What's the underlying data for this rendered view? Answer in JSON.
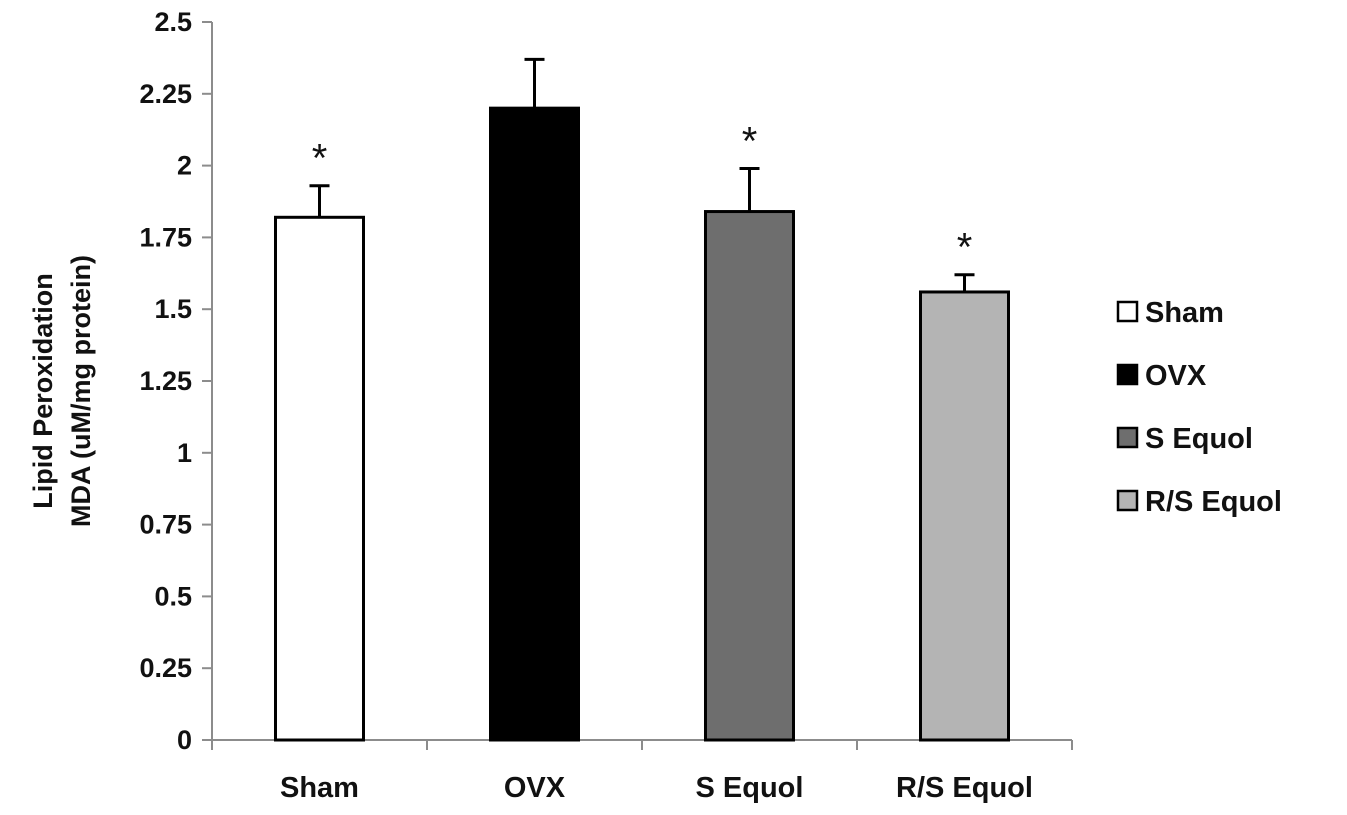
{
  "chart_data": {
    "type": "bar",
    "title": "",
    "ylabel_lines": [
      "Lipid Peroxidation",
      "MDA (uM/mg protein)"
    ],
    "xlabel": "",
    "ylim": [
      0,
      2.5
    ],
    "yticks": [
      0,
      0.25,
      0.5,
      0.75,
      1,
      1.25,
      1.5,
      1.75,
      2,
      2.25,
      2.5
    ],
    "ytick_labels": [
      "0",
      "0.25",
      "0.5",
      "0.75",
      "1",
      "1.25",
      "1.5",
      "1.75",
      "2",
      "2.25",
      "2.5"
    ],
    "grid": false,
    "legend_position": "right",
    "categories": [
      "Sham",
      "OVX",
      "S Equol",
      "R/S Equol"
    ],
    "values": [
      1.82,
      2.2,
      1.84,
      1.56
    ],
    "errors": [
      0.11,
      0.17,
      0.15,
      0.06
    ],
    "significance_marks": [
      "*",
      "",
      "*",
      "*"
    ],
    "colors": [
      "#ffffff",
      "#000000",
      "#6e6e6e",
      "#b4b4b4"
    ],
    "legend": [
      "Sham",
      "OVX",
      "S Equol",
      "R/S Equol"
    ]
  }
}
